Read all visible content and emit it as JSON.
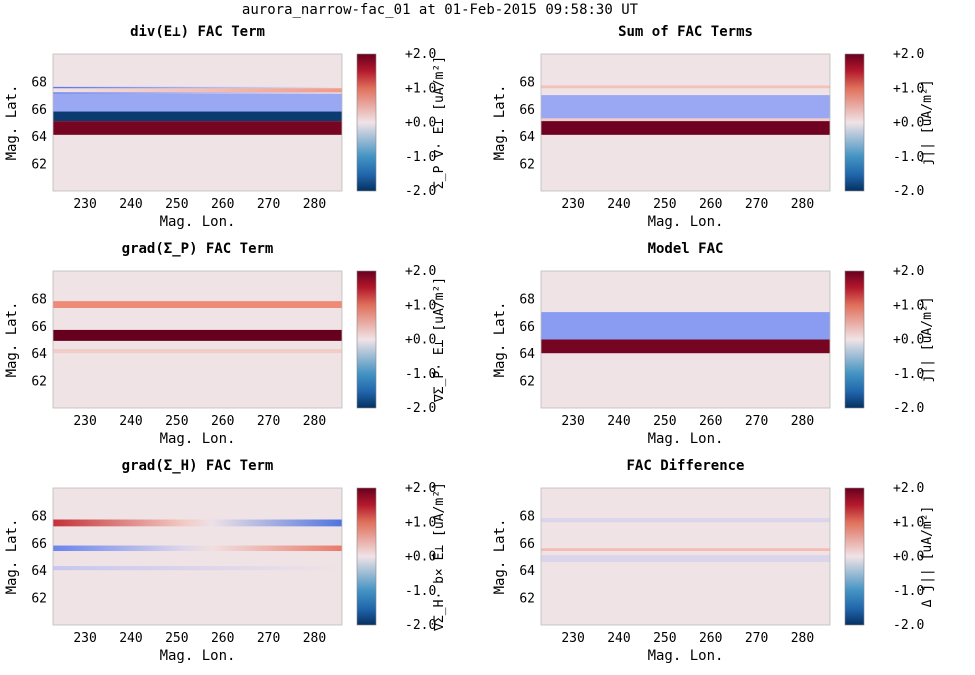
{
  "figure_title": "aurora_narrow-fac_01 at 01-Feb-2015 09:58:30 UT",
  "colors": {
    "positive": "#67001f",
    "negative": "#053061",
    "zero": "#f0e3e6",
    "frame": "#999999"
  },
  "chart_data": [
    {
      "type": "heatmap",
      "title": "div(E⊥) FAC Term",
      "xlabel": "Mag. Lon.",
      "ylabel": "Mag. Lat.",
      "colorbar_label": "Σ_P ∇· E⊥  [uA/m²]",
      "xlim": [
        223,
        286
      ],
      "ylim": [
        60,
        70
      ],
      "xticks": [
        230,
        240,
        250,
        260,
        270,
        280
      ],
      "yticks": [
        62,
        64,
        66,
        68
      ],
      "clim": [
        -2,
        2
      ],
      "colorbar_ticks": [
        "+2.0",
        "+1.0",
        "+0.0",
        "-1.0",
        "-2.0"
      ],
      "bands": [
        {
          "lat": [
            67.1,
            67.6
          ],
          "value": -1.0,
          "fade": "right"
        },
        {
          "lat": [
            67.2,
            67.5
          ],
          "value": 0.6,
          "fade": "left"
        },
        {
          "lat": [
            65.8,
            67.1
          ],
          "value": -0.6
        },
        {
          "lat": [
            65.1,
            65.8
          ],
          "value": -1.9
        },
        {
          "lat": [
            64.1,
            65.1
          ],
          "value": 1.9
        }
      ]
    },
    {
      "type": "heatmap",
      "title": "Sum of FAC Terms",
      "xlabel": "Mag. Lon.",
      "ylabel": "Mag. Lat.",
      "colorbar_label": "j||  [uA/m²]",
      "xlim": [
        223,
        286
      ],
      "ylim": [
        60,
        70
      ],
      "xticks": [
        230,
        240,
        250,
        260,
        270,
        280
      ],
      "yticks": [
        62,
        64,
        66,
        68
      ],
      "clim": [
        -2,
        2
      ],
      "colorbar_ticks": [
        "+2.0",
        "+1.0",
        "+0.0",
        "-1.0",
        "-2.0"
      ],
      "bands": [
        {
          "lat": [
            67.5,
            67.7
          ],
          "value": 0.3
        },
        {
          "lat": [
            65.3,
            67.0
          ],
          "value": -0.6
        },
        {
          "lat": [
            65.1,
            65.3
          ],
          "value": 0.2
        },
        {
          "lat": [
            64.1,
            65.1
          ],
          "value": 1.95
        }
      ]
    },
    {
      "type": "heatmap",
      "title": "grad(Σ_P) FAC Term",
      "xlabel": "Mag. Lon.",
      "ylabel": "Mag. Lat.",
      "colorbar_label": "∇Σ_P· E⊥  [uA/m²]",
      "xlim": [
        223,
        286
      ],
      "ylim": [
        60,
        70
      ],
      "xticks": [
        230,
        240,
        250,
        260,
        270,
        280
      ],
      "yticks": [
        62,
        64,
        66,
        68
      ],
      "clim": [
        -2,
        2
      ],
      "colorbar_ticks": [
        "+2.0",
        "+1.0",
        "+0.0",
        "-1.0",
        "-2.0"
      ],
      "bands": [
        {
          "lat": [
            67.3,
            67.8
          ],
          "value": 0.7
        },
        {
          "lat": [
            64.9,
            65.7
          ],
          "value": 2.0
        },
        {
          "lat": [
            64.0,
            64.3
          ],
          "value": 0.2
        }
      ]
    },
    {
      "type": "heatmap",
      "title": "Model FAC",
      "xlabel": "Mag. Lon.",
      "ylabel": "Mag. Lat.",
      "colorbar_label": "j||  [uA/m²]",
      "xlim": [
        223,
        286
      ],
      "ylim": [
        60,
        70
      ],
      "xticks": [
        230,
        240,
        250,
        260,
        270,
        280
      ],
      "yticks": [
        62,
        64,
        66,
        68
      ],
      "clim": [
        -2,
        2
      ],
      "colorbar_ticks": [
        "+2.0",
        "+1.0",
        "+0.0",
        "-1.0",
        "-2.0"
      ],
      "bands": [
        {
          "lat": [
            65.0,
            67.0
          ],
          "value": -0.7
        },
        {
          "lat": [
            64.0,
            65.0
          ],
          "value": 1.9
        }
      ]
    },
    {
      "type": "heatmap",
      "title": "grad(Σ_H) FAC Term",
      "xlabel": "Mag. Lon.",
      "ylabel": "Mag. Lat.",
      "colorbar_label": "∇Σ_H· b× E⊥  [uA/m²]",
      "xlim": [
        223,
        286
      ],
      "ylim": [
        60,
        70
      ],
      "xticks": [
        230,
        240,
        250,
        260,
        270,
        280
      ],
      "yticks": [
        62,
        64,
        66,
        68
      ],
      "clim": [
        -2,
        2
      ],
      "colorbar_ticks": [
        "+2.0",
        "+1.0",
        "+0.0",
        "-1.0",
        "-2.0"
      ],
      "bands": [
        {
          "lat": [
            67.2,
            67.7
          ],
          "value": 1.3,
          "fade": "right",
          "to": -1.1
        },
        {
          "lat": [
            65.4,
            65.8
          ],
          "value": -0.9,
          "fade": "right",
          "to": 0.8
        },
        {
          "lat": [
            64.0,
            64.3
          ],
          "value": -0.3,
          "fade": "right",
          "to": 0.0
        }
      ]
    },
    {
      "type": "heatmap",
      "title": "FAC Difference",
      "xlabel": "Mag. Lon.",
      "ylabel": "Mag. Lat.",
      "colorbar_label": "Δ j||  [uA/m²]",
      "xlim": [
        223,
        286
      ],
      "ylim": [
        60,
        70
      ],
      "xticks": [
        230,
        240,
        250,
        260,
        270,
        280
      ],
      "yticks": [
        62,
        64,
        66,
        68
      ],
      "clim": [
        -2,
        2
      ],
      "colorbar_ticks": [
        "+2.0",
        "+1.0",
        "+0.0",
        "-1.0",
        "-2.0"
      ],
      "bands": [
        {
          "lat": [
            67.5,
            67.8
          ],
          "value": -0.15
        },
        {
          "lat": [
            65.4,
            65.6
          ],
          "value": 0.35
        },
        {
          "lat": [
            64.6,
            65.1
          ],
          "value": -0.15
        }
      ]
    }
  ]
}
